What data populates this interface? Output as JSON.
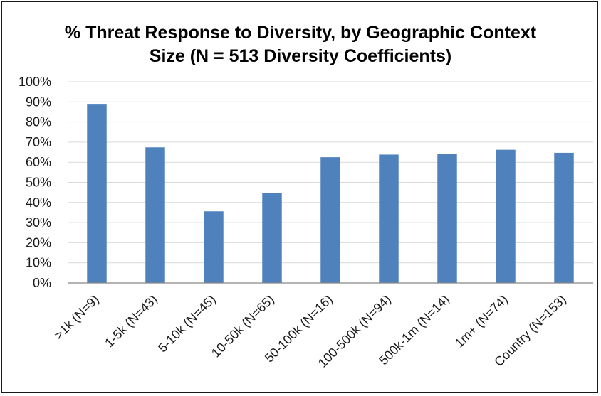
{
  "chart_data": {
    "type": "bar",
    "title_lines": [
      "% Threat Response to Diversity, by Geographic Context",
      "Size (N = 513 Diversity Coefficients)"
    ],
    "categories": [
      ">1k (N=9)",
      "1-5k (N=43)",
      "5-10k (N=45)",
      "10-50k (N=65)",
      "50-100k (N=16)",
      "100-500k (N=94)",
      "500k-1m (N=14)",
      "1m+ (N=74)",
      "Country (N=153)"
    ],
    "values": [
      89,
      67.4,
      35.6,
      44.6,
      62.5,
      63.8,
      64.3,
      66.2,
      64.7
    ],
    "ylim": [
      0,
      100
    ],
    "ytick_step": 10,
    "ytick_format": "percent",
    "grid": true,
    "bar_color": "#4f81bd",
    "grid_color": "#d9d9d9",
    "axis_color": "#868686",
    "legend": "none"
  }
}
